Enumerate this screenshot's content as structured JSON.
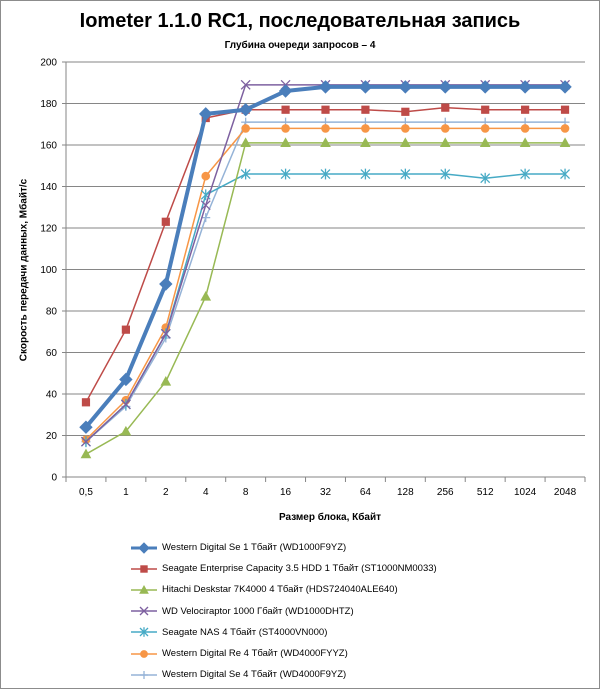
{
  "chart_data": {
    "type": "line",
    "title": "Iometer 1.1.0 RC1, последовательная запись",
    "subtitle": "Глубина очереди запросов – 4",
    "xlabel": "Размер блока, Кбайт",
    "ylabel": "Скорость передачи данных, Мбайт/с",
    "categories": [
      "0,5",
      "1",
      "2",
      "4",
      "8",
      "16",
      "32",
      "64",
      "128",
      "256",
      "512",
      "1024",
      "2048"
    ],
    "ylim": [
      0,
      200
    ],
    "yticks": [
      0,
      20,
      40,
      60,
      80,
      100,
      120,
      140,
      160,
      180,
      200
    ],
    "grid": true,
    "legend_position": "bottom",
    "series": [
      {
        "name": "Western Digital Se 1 Тбайт (WD1000F9YZ)",
        "color": "#4a7ebb",
        "marker": "diamond",
        "width": 4,
        "values": [
          24,
          47,
          93,
          175,
          177,
          186,
          188,
          188,
          188,
          188,
          188,
          188,
          188
        ]
      },
      {
        "name": "Seagate Enterprise Capacity 3.5 HDD 1 Тбайт (ST1000NM0033)",
        "color": "#be4b48",
        "marker": "square",
        "width": 1.5,
        "values": [
          36,
          71,
          123,
          173,
          177,
          177,
          177,
          177,
          176,
          178,
          177,
          177,
          177
        ]
      },
      {
        "name": "Hitachi Deskstar 7K4000 4 Тбайт (HDS724040ALE640)",
        "color": "#98b954",
        "marker": "triangle",
        "width": 1.5,
        "values": [
          11,
          22,
          46,
          87,
          161,
          161,
          161,
          161,
          161,
          161,
          161,
          161,
          161
        ]
      },
      {
        "name": "WD Velociraptor 1000 Гбайт (WD1000DHTZ)",
        "color": "#7d60a0",
        "marker": "x",
        "width": 1.5,
        "values": [
          17,
          35,
          69,
          131,
          189,
          189,
          189,
          189,
          189,
          189,
          189,
          189,
          189
        ]
      },
      {
        "name": "Seagate NAS 4 Тбайт (ST4000VN000)",
        "color": "#46aac5",
        "marker": "star",
        "width": 1.5,
        "values": [
          17,
          35,
          69,
          136,
          146,
          146,
          146,
          146,
          146,
          146,
          144,
          146,
          146
        ]
      },
      {
        "name": "Western Digital Re 4 Тбайт (WD4000FYYZ)",
        "color": "#f79646",
        "marker": "circle",
        "width": 1.5,
        "values": [
          18,
          37,
          72,
          145,
          168,
          168,
          168,
          168,
          168,
          168,
          168,
          168,
          168
        ]
      },
      {
        "name": "Western Digital Se 4 Тбайт (WD4000F9YZ)",
        "color": "#95b3d7",
        "marker": "plus",
        "width": 1.5,
        "values": [
          17,
          34,
          67,
          125,
          171,
          171,
          171,
          171,
          171,
          171,
          171,
          171,
          171
        ]
      }
    ]
  }
}
